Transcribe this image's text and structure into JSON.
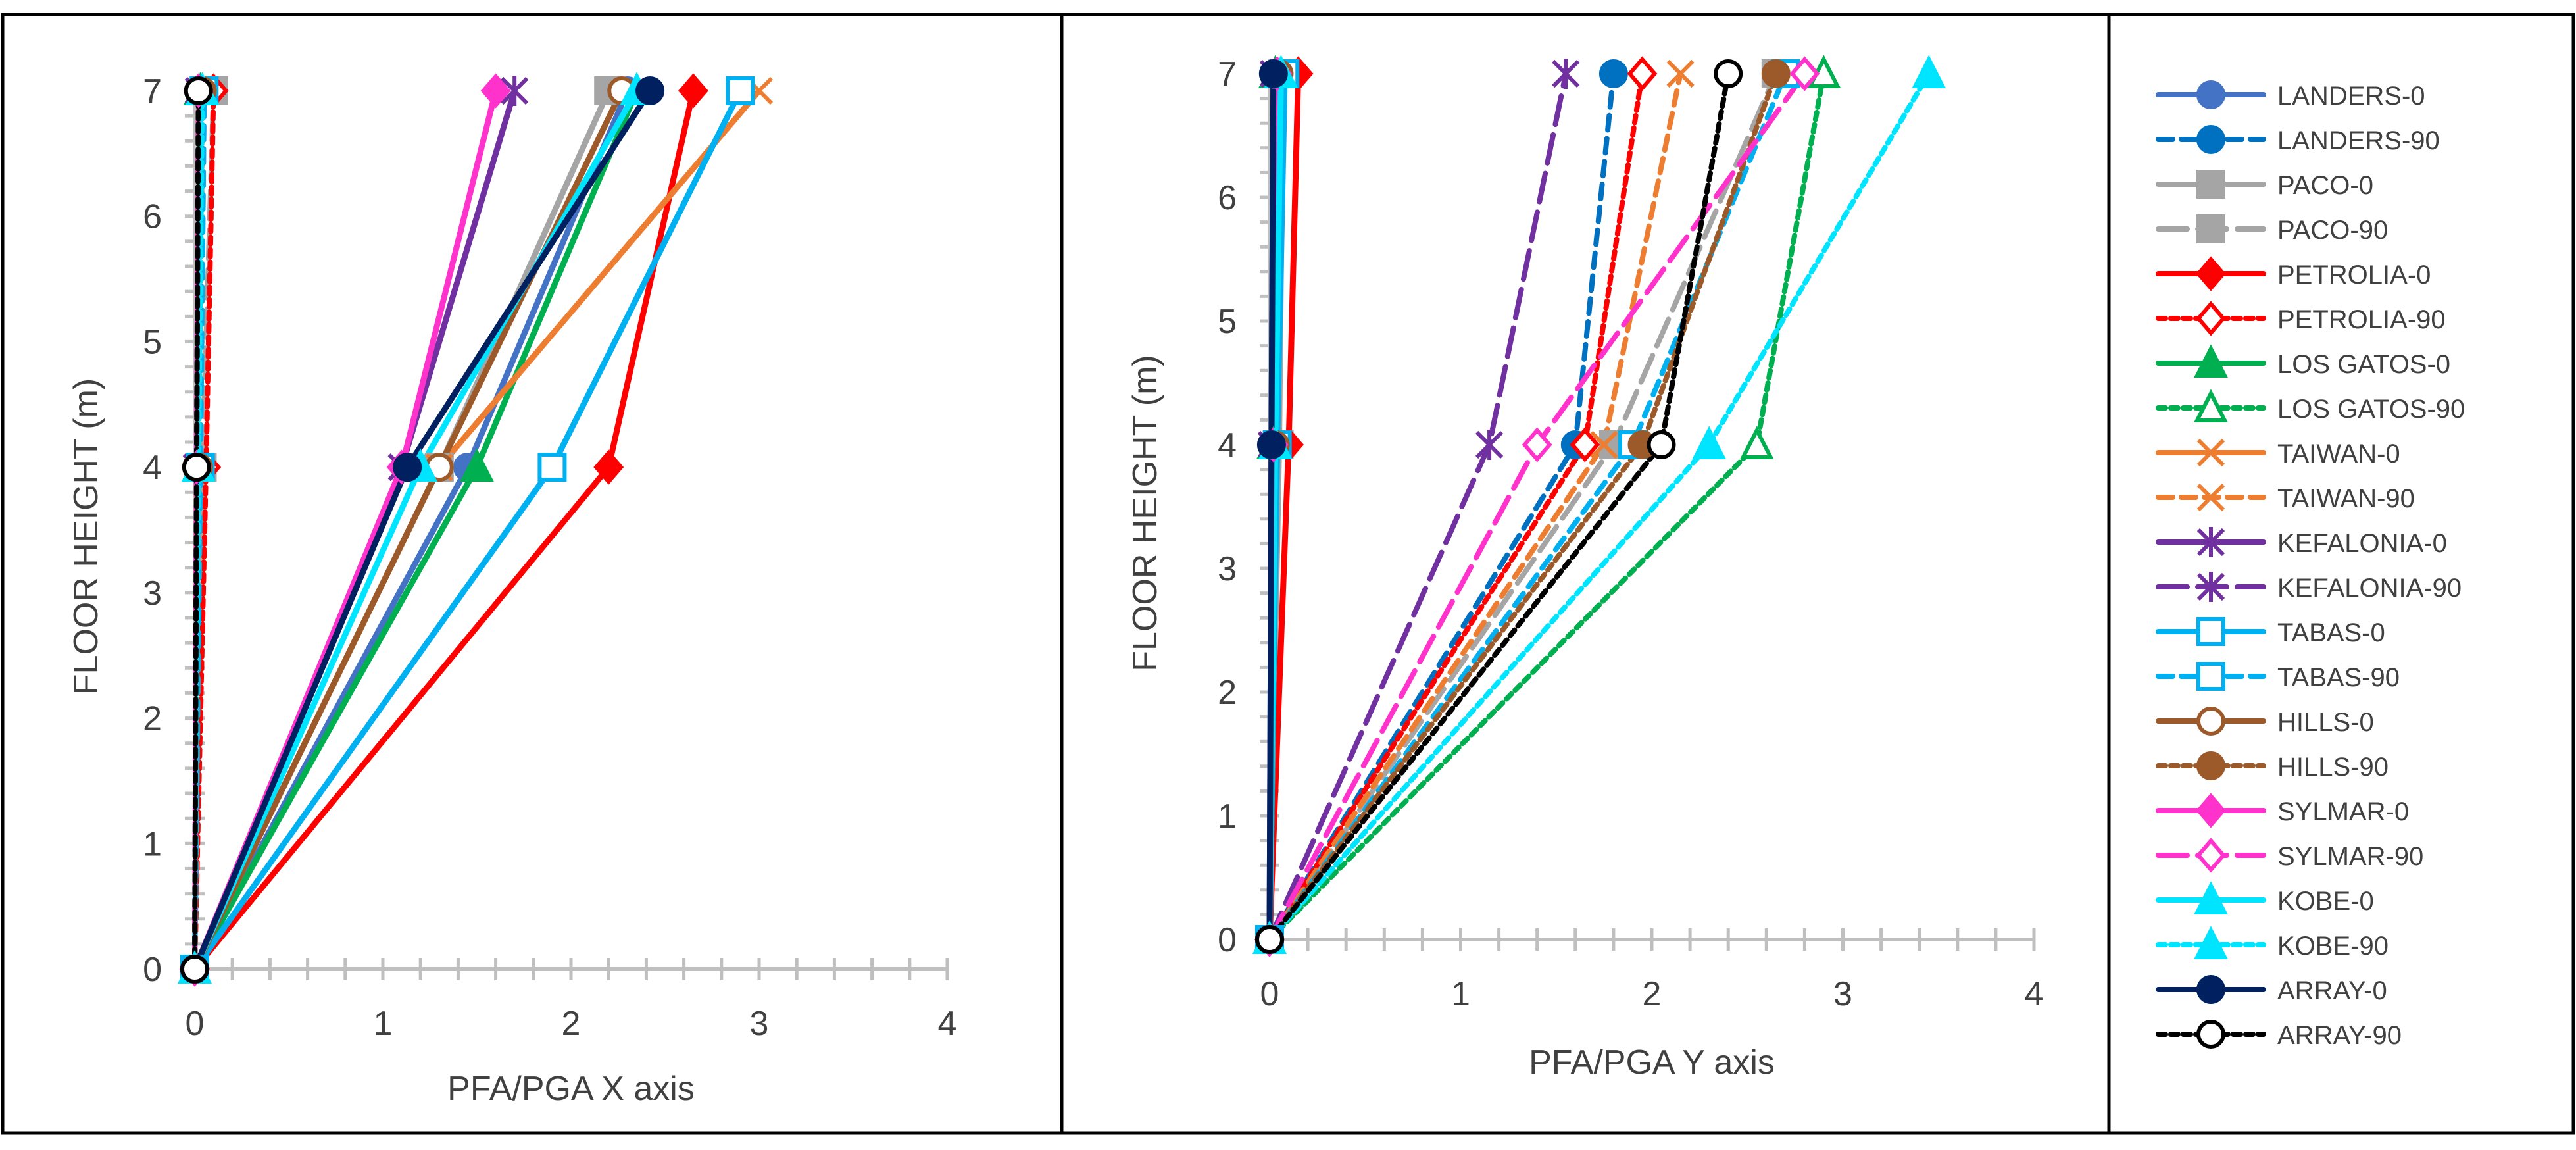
{
  "chart_data": [
    {
      "type": "line",
      "title": "",
      "xlabel": "PFA/PGA X axis",
      "ylabel": "FLOOR HEIGHT (m)",
      "xlim": [
        0,
        4
      ],
      "ylim": [
        0,
        7
      ],
      "x_ticks": [
        "0",
        "1",
        "2",
        "3",
        "4"
      ],
      "y_ticks": [
        "0",
        "1",
        "2",
        "3",
        "4",
        "5",
        "6",
        "7"
      ],
      "y": [
        0,
        4,
        7
      ],
      "series": [
        {
          "name": "LANDERS-0",
          "x": [
            0,
            1.45,
            2.3
          ]
        },
        {
          "name": "LANDERS-90",
          "x": [
            0,
            0.02,
            0.03
          ]
        },
        {
          "name": "PACO-0",
          "x": [
            0,
            1.3,
            2.2
          ]
        },
        {
          "name": "PACO-90",
          "x": [
            0,
            0.04,
            0.1
          ]
        },
        {
          "name": "PETROLIA-0",
          "x": [
            0,
            2.2,
            2.65
          ]
        },
        {
          "name": "PETROLIA-90",
          "x": [
            0,
            0.06,
            0.1
          ]
        },
        {
          "name": "LOS GATOS-0",
          "x": [
            0,
            1.5,
            2.35
          ]
        },
        {
          "name": "LOS GATOS-90",
          "x": [
            0,
            0.02,
            0.03
          ]
        },
        {
          "name": "TAIWAN-0",
          "x": [
            0,
            1.3,
            3.0
          ]
        },
        {
          "name": "TAIWAN-90",
          "x": [
            0,
            0.03,
            0.05
          ]
        },
        {
          "name": "KEFALONIA-0",
          "x": [
            0,
            1.1,
            1.7
          ]
        },
        {
          "name": "KEFALONIA-90",
          "x": [
            0,
            0.01,
            0.02
          ]
        },
        {
          "name": "TABAS-0",
          "x": [
            0,
            1.9,
            2.9
          ]
        },
        {
          "name": "TABAS-90",
          "x": [
            0,
            0.03,
            0.05
          ]
        },
        {
          "name": "HILLS-0",
          "x": [
            0,
            1.3,
            2.27
          ]
        },
        {
          "name": "HILLS-90",
          "x": [
            0,
            0.02,
            0.04
          ]
        },
        {
          "name": "SYLMAR-0",
          "x": [
            0,
            1.1,
            1.6
          ]
        },
        {
          "name": "SYLMAR-90",
          "x": [
            0,
            0.01,
            0.02
          ]
        },
        {
          "name": "KOBE-0",
          "x": [
            0,
            1.2,
            2.35
          ]
        },
        {
          "name": "KOBE-90",
          "x": [
            0,
            0.02,
            0.04
          ]
        },
        {
          "name": "ARRAY-0",
          "x": [
            0,
            1.13,
            2.42
          ]
        },
        {
          "name": "ARRAY-90",
          "x": [
            0,
            0.01,
            0.02
          ]
        }
      ]
    },
    {
      "type": "line",
      "title": "",
      "xlabel": "PFA/PGA Y axis",
      "ylabel": "FLOOR HEIGHT (m)",
      "xlim": [
        0,
        4
      ],
      "ylim": [
        0,
        7
      ],
      "x_ticks": [
        "0",
        "1",
        "2",
        "3",
        "4"
      ],
      "y_ticks": [
        "0",
        "1",
        "2",
        "3",
        "4",
        "5",
        "6",
        "7"
      ],
      "y": [
        0,
        4,
        7
      ],
      "series": [
        {
          "name": "LANDERS-0",
          "x": [
            0,
            0.03,
            0.05
          ]
        },
        {
          "name": "LANDERS-90",
          "x": [
            0,
            1.6,
            1.8
          ]
        },
        {
          "name": "PACO-0",
          "x": [
            0,
            0.05,
            0.07
          ]
        },
        {
          "name": "PACO-90",
          "x": [
            0,
            1.8,
            2.65
          ]
        },
        {
          "name": "PETROLIA-0",
          "x": [
            0,
            0.1,
            0.15
          ]
        },
        {
          "name": "PETROLIA-90",
          "x": [
            0,
            1.65,
            1.95
          ]
        },
        {
          "name": "LOS GATOS-0",
          "x": [
            0,
            0.02,
            0.03
          ]
        },
        {
          "name": "LOS GATOS-90",
          "x": [
            0,
            2.55,
            2.9
          ]
        },
        {
          "name": "TAIWAN-0",
          "x": [
            0,
            0.04,
            0.06
          ]
        },
        {
          "name": "TAIWAN-90",
          "x": [
            0,
            1.75,
            2.15
          ]
        },
        {
          "name": "KEFALONIA-0",
          "x": [
            0,
            0.01,
            0.02
          ]
        },
        {
          "name": "KEFALONIA-90",
          "x": [
            0,
            1.15,
            1.55
          ]
        },
        {
          "name": "TABAS-0",
          "x": [
            0,
            0.04,
            0.08
          ]
        },
        {
          "name": "TABAS-90",
          "x": [
            0,
            1.9,
            2.7
          ]
        },
        {
          "name": "HILLS-0",
          "x": [
            0,
            0.03,
            0.05
          ]
        },
        {
          "name": "HILLS-90",
          "x": [
            0,
            1.95,
            2.65
          ]
        },
        {
          "name": "SYLMAR-0",
          "x": [
            0,
            0.02,
            0.04
          ]
        },
        {
          "name": "SYLMAR-90",
          "x": [
            0,
            1.4,
            2.8
          ]
        },
        {
          "name": "KOBE-0",
          "x": [
            0,
            0.03,
            0.06
          ]
        },
        {
          "name": "KOBE-90",
          "x": [
            0,
            2.3,
            3.45
          ]
        },
        {
          "name": "ARRAY-0",
          "x": [
            0,
            0.01,
            0.02
          ]
        },
        {
          "name": "ARRAY-90",
          "x": [
            0,
            2.05,
            2.4
          ]
        }
      ]
    }
  ],
  "legend": [
    {
      "name": "LANDERS-0",
      "color": "#4472C4",
      "dash": "solid",
      "marker": "circle-filled"
    },
    {
      "name": "LANDERS-90",
      "color": "#0070C0",
      "dash": "dash",
      "marker": "circle-filled"
    },
    {
      "name": "PACO-0",
      "color": "#A5A5A5",
      "dash": "solid",
      "marker": "square-filled"
    },
    {
      "name": "PACO-90",
      "color": "#A5A5A5",
      "dash": "longdash",
      "marker": "square-filled"
    },
    {
      "name": "PETROLIA-0",
      "color": "#FF0000",
      "dash": "solid",
      "marker": "diamond-filled"
    },
    {
      "name": "PETROLIA-90",
      "color": "#FF0000",
      "dash": "dot",
      "marker": "diamond-open"
    },
    {
      "name": "LOS GATOS-0",
      "color": "#00B050",
      "dash": "solid",
      "marker": "triangle-filled"
    },
    {
      "name": "LOS GATOS-90",
      "color": "#00B050",
      "dash": "dot",
      "marker": "triangle-open"
    },
    {
      "name": "TAIWAN-0",
      "color": "#ED7D31",
      "dash": "solid",
      "marker": "x"
    },
    {
      "name": "TAIWAN-90",
      "color": "#ED7D31",
      "dash": "dash",
      "marker": "x"
    },
    {
      "name": "KEFALONIA-0",
      "color": "#7030A0",
      "dash": "solid",
      "marker": "star"
    },
    {
      "name": "KEFALONIA-90",
      "color": "#7030A0",
      "dash": "longdash",
      "marker": "star"
    },
    {
      "name": "TABAS-0",
      "color": "#00B0F0",
      "dash": "solid",
      "marker": "square-open"
    },
    {
      "name": "TABAS-90",
      "color": "#00B0F0",
      "dash": "dash",
      "marker": "square-open"
    },
    {
      "name": "HILLS-0",
      "color": "#9C5A2A",
      "dash": "solid",
      "marker": "circle-open"
    },
    {
      "name": "HILLS-90",
      "color": "#9C5A2A",
      "dash": "dot",
      "marker": "circle-filled"
    },
    {
      "name": "SYLMAR-0",
      "color": "#FF33CC",
      "dash": "solid",
      "marker": "diamond-filled"
    },
    {
      "name": "SYLMAR-90",
      "color": "#FF33CC",
      "dash": "longdash",
      "marker": "diamond-open"
    },
    {
      "name": "KOBE-0",
      "color": "#00E5FF",
      "dash": "solid",
      "marker": "triangle-filled"
    },
    {
      "name": "KOBE-90",
      "color": "#00E5FF",
      "dash": "dot",
      "marker": "triangle-filled"
    },
    {
      "name": "ARRAY-0",
      "color": "#002060",
      "dash": "solid",
      "marker": "circle-filled"
    },
    {
      "name": "ARRAY-90",
      "color": "#000000",
      "dash": "dot",
      "marker": "circle-open"
    }
  ]
}
